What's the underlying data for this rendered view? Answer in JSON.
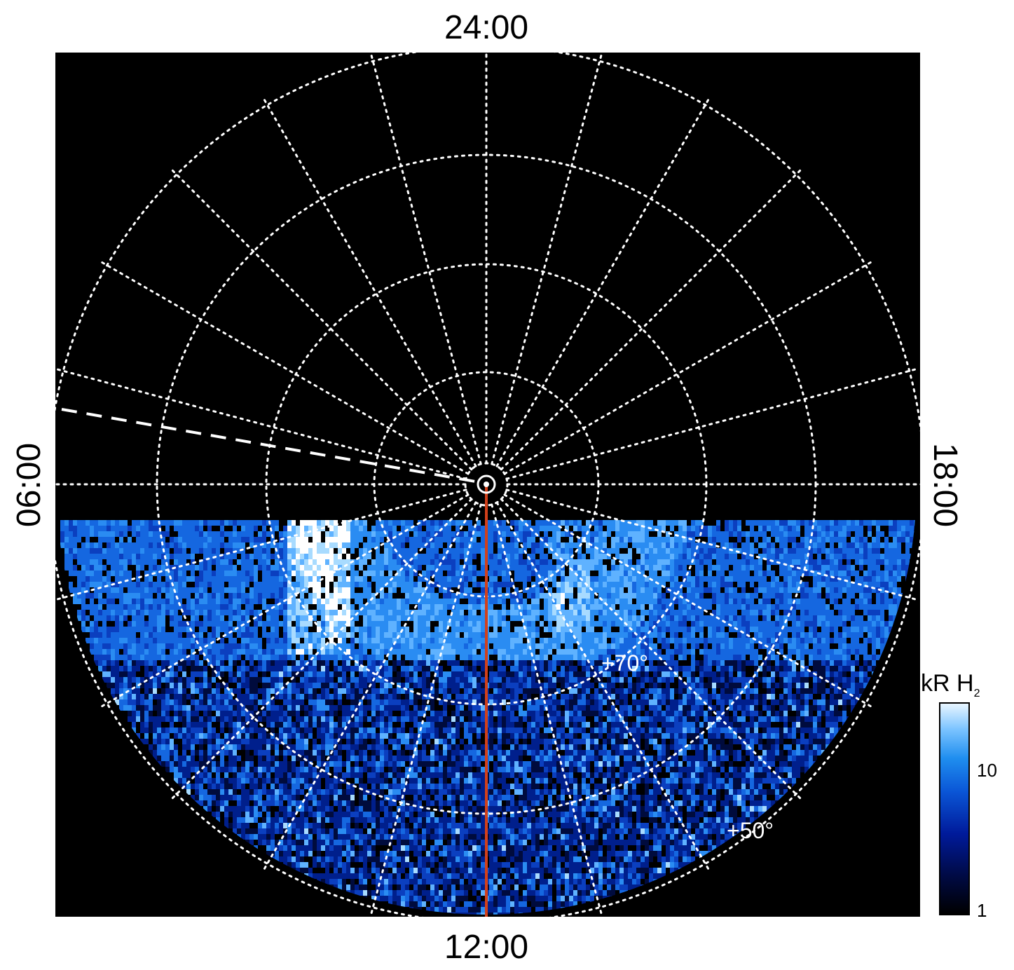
{
  "polar_map": {
    "local_time_labels": {
      "top": "24:00",
      "bottom": "12:00",
      "left": "06:00",
      "right": "18:00"
    },
    "latitude_labels": {
      "lat70": "+70°",
      "lat50": "+50°"
    },
    "colors": {
      "background": "#000000",
      "grid": "#ffffff",
      "reference_line": "#d2401a",
      "dashed_line": "#ffffff"
    }
  },
  "colorbar": {
    "title_main": "kR H",
    "title_subscript": "2",
    "ticks": {
      "t10": "10",
      "t1": "1"
    },
    "scale": "log",
    "range": [
      1,
      30
    ]
  }
}
